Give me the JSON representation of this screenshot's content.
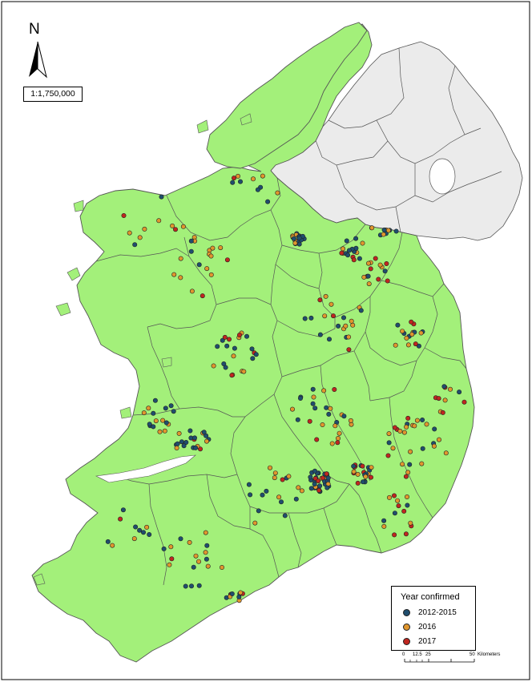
{
  "north_label": "N",
  "scale_text": "1:1,750,000",
  "legend": {
    "title": "Year confirmed",
    "items": [
      {
        "label": "2012-2015",
        "color": "#1f4e6e"
      },
      {
        "label": "2016",
        "color": "#e0962e"
      },
      {
        "label": "2017",
        "color": "#c0261f"
      }
    ]
  },
  "scale_bar": {
    "labels": [
      "0",
      "12.5",
      "25",
      "50"
    ],
    "unit": "Kilometers"
  },
  "colors": {
    "land": "#a3f07a",
    "northern_ireland": "#ebebeb",
    "boundary": "#555555"
  }
}
